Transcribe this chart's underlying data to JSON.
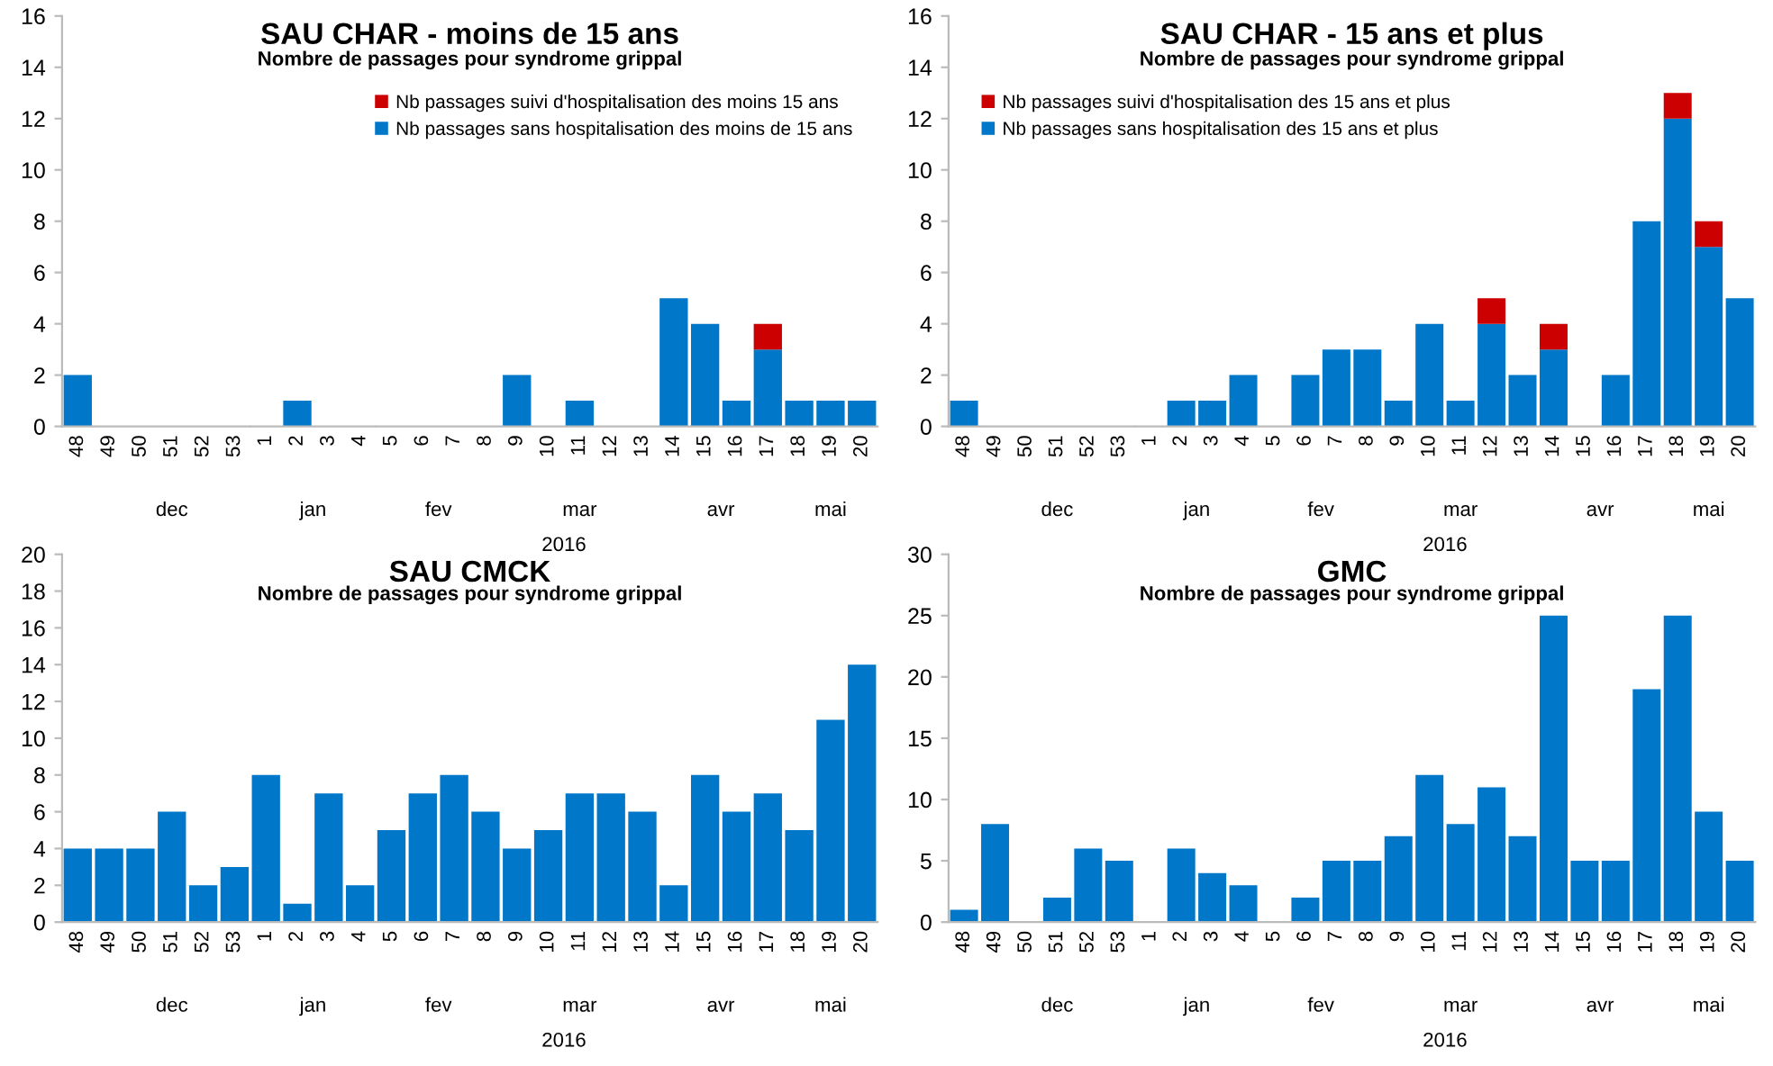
{
  "chart_data": [
    {
      "type": "bar",
      "title": "SAU CHAR - moins de 15 ans",
      "subtitle": "Nombre de passages pour syndrome grippal",
      "stacked": true,
      "legend": "top right",
      "grid": false,
      "categories": [
        "48",
        "49",
        "50",
        "51",
        "52",
        "53",
        "1",
        "2",
        "3",
        "4",
        "5",
        "6",
        "7",
        "8",
        "9",
        "10",
        "11",
        "12",
        "13",
        "14",
        "15",
        "16",
        "17",
        "18",
        "19",
        "20"
      ],
      "series": [
        {
          "name": "Nb passages sans hospitalisation des moins de 15 ans",
          "color": "#0077c8",
          "values": [
            2,
            0,
            0,
            0,
            0,
            0,
            0,
            1,
            0,
            0,
            0,
            0,
            0,
            0,
            2,
            0,
            1,
            0,
            0,
            5,
            4,
            1,
            3,
            1,
            1,
            1
          ]
        },
        {
          "name": "Nb passages suivi d'hospitalisation des moins 15 ans",
          "color": "#cc0000",
          "values": [
            0,
            0,
            0,
            0,
            0,
            0,
            0,
            0,
            0,
            0,
            0,
            0,
            0,
            0,
            0,
            0,
            0,
            0,
            0,
            0,
            0,
            0,
            1,
            0,
            0,
            0
          ]
        }
      ],
      "ylim": [
        0,
        16
      ],
      "yticks": [
        0,
        2,
        4,
        6,
        8,
        10,
        12,
        14,
        16
      ],
      "annotations": [
        "dec",
        "jan",
        "fev",
        "mar",
        "avr",
        "mai",
        "2016"
      ]
    },
    {
      "type": "bar",
      "title": "SAU CHAR - 15 ans et plus",
      "subtitle": "Nombre de passages pour syndrome grippal",
      "stacked": true,
      "legend": "top left",
      "grid": false,
      "categories": [
        "48",
        "49",
        "50",
        "51",
        "52",
        "53",
        "1",
        "2",
        "3",
        "4",
        "5",
        "6",
        "7",
        "8",
        "9",
        "10",
        "11",
        "12",
        "13",
        "14",
        "15",
        "16",
        "17",
        "18",
        "19",
        "20"
      ],
      "series": [
        {
          "name": "Nb passages sans hospitalisation des 15 ans et plus",
          "color": "#0077c8",
          "values": [
            1,
            0,
            0,
            0,
            0,
            0,
            0,
            1,
            1,
            2,
            0,
            2,
            3,
            3,
            1,
            4,
            1,
            4,
            2,
            3,
            0,
            2,
            8,
            12,
            7,
            5
          ]
        },
        {
          "name": "Nb passages suivi d'hospitalisation des 15 ans et plus",
          "color": "#cc0000",
          "values": [
            0,
            0,
            0,
            0,
            0,
            0,
            0,
            0,
            0,
            0,
            0,
            0,
            0,
            0,
            0,
            0,
            0,
            1,
            0,
            1,
            0,
            0,
            0,
            1,
            1,
            0
          ]
        }
      ],
      "ylim": [
        0,
        16
      ],
      "yticks": [
        0,
        2,
        4,
        6,
        8,
        10,
        12,
        14,
        16
      ],
      "annotations": [
        "dec",
        "jan",
        "fev",
        "mar",
        "avr",
        "mai",
        "2016"
      ]
    },
    {
      "type": "bar",
      "title": "SAU CMCK",
      "subtitle": "Nombre de passages pour syndrome grippal",
      "grid": false,
      "categories": [
        "48",
        "49",
        "50",
        "51",
        "52",
        "53",
        "1",
        "2",
        "3",
        "4",
        "5",
        "6",
        "7",
        "8",
        "9",
        "10",
        "11",
        "12",
        "13",
        "14",
        "15",
        "16",
        "17",
        "18",
        "19",
        "20"
      ],
      "series": [
        {
          "color": "#0077c8",
          "values": [
            4,
            4,
            4,
            6,
            2,
            3,
            8,
            1,
            7,
            2,
            5,
            7,
            8,
            6,
            4,
            5,
            7,
            7,
            6,
            2,
            8,
            6,
            7,
            5,
            11,
            14
          ]
        }
      ],
      "ylim": [
        0,
        20
      ],
      "yticks": [
        0,
        2,
        4,
        6,
        8,
        10,
        12,
        14,
        16,
        18,
        20
      ],
      "annotations": [
        "dec",
        "jan",
        "fev",
        "mar",
        "avr",
        "mai",
        "2016"
      ]
    },
    {
      "type": "bar",
      "title": "GMC",
      "subtitle": "Nombre de passages pour syndrome grippal",
      "grid": false,
      "categories": [
        "48",
        "49",
        "50",
        "51",
        "52",
        "53",
        "1",
        "2",
        "3",
        "4",
        "5",
        "6",
        "7",
        "8",
        "9",
        "10",
        "11",
        "12",
        "13",
        "14",
        "15",
        "16",
        "17",
        "18",
        "19",
        "20"
      ],
      "series": [
        {
          "color": "#0077c8",
          "values": [
            1,
            8,
            0,
            2,
            6,
            5,
            0,
            6,
            4,
            3,
            0,
            2,
            5,
            5,
            7,
            12,
            8,
            11,
            7,
            25,
            5,
            5,
            19,
            25,
            9,
            5
          ]
        }
      ],
      "ylim": [
        0,
        30
      ],
      "yticks": [
        0,
        5,
        10,
        15,
        20,
        25,
        30
      ],
      "annotations": [
        "dec",
        "jan",
        "fev",
        "mar",
        "avr",
        "mai",
        "2016"
      ]
    }
  ]
}
